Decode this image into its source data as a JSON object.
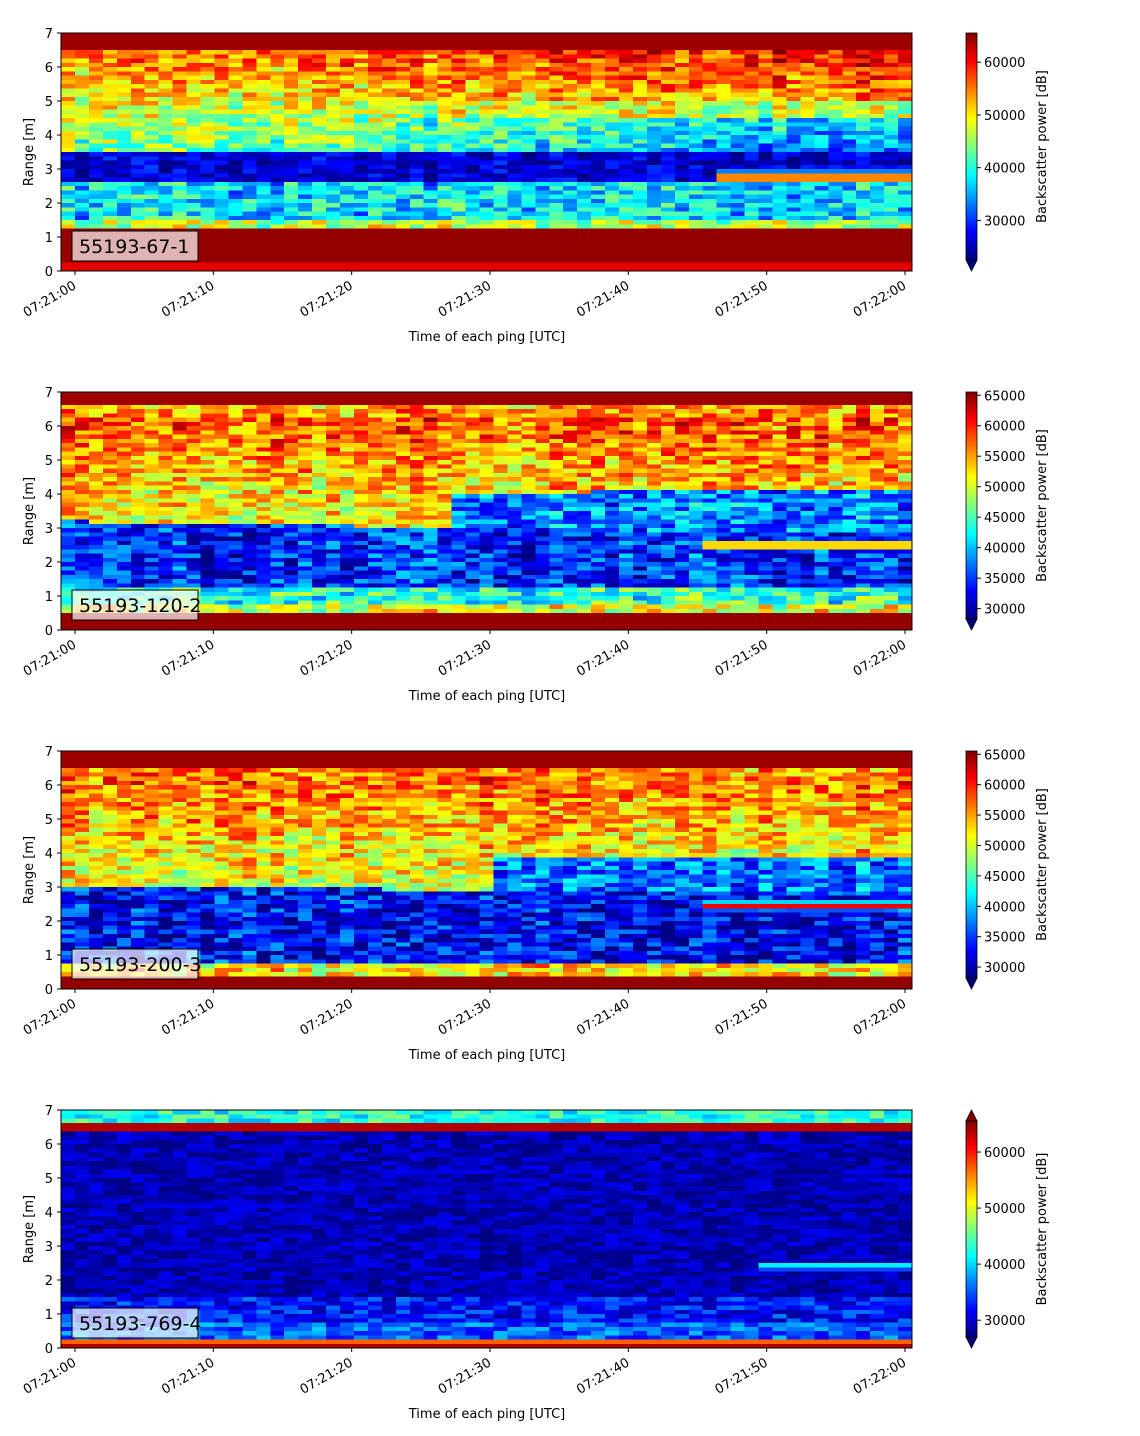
{
  "chart_data": [
    {
      "type": "heatmap",
      "label_box": "55193-67-1",
      "xlabel": "Time of each ping [UTC]",
      "ylabel": "Range [m]",
      "x_ticks": [
        "07:21:00",
        "07:21:10",
        "07:21:20",
        "07:21:30",
        "07:21:40",
        "07:21:50",
        "07:22:00"
      ],
      "xlim": [
        "07:21:00",
        "07:22:00"
      ],
      "y_ticks": [
        0,
        1,
        2,
        3,
        4,
        5,
        6,
        7
      ],
      "ylim": [
        0,
        7
      ],
      "colorbar": {
        "label": "Backscatter power [dB]",
        "ticks": [
          30000,
          40000,
          50000,
          60000
        ],
        "range": [
          22500,
          65535
        ],
        "extend": "min",
        "colormap": "jet"
      }
    },
    {
      "type": "heatmap",
      "label_box": "55193-120-2",
      "xlabel": "Time of each ping [UTC]",
      "ylabel": "Range [m]",
      "x_ticks": [
        "07:21:00",
        "07:21:10",
        "07:21:20",
        "07:21:30",
        "07:21:40",
        "07:21:50",
        "07:22:00"
      ],
      "xlim": [
        "07:21:00",
        "07:22:00"
      ],
      "y_ticks": [
        0,
        1,
        2,
        3,
        4,
        5,
        6,
        7
      ],
      "ylim": [
        0,
        7
      ],
      "colorbar": {
        "label": "Backscatter power [dB]",
        "ticks": [
          30000,
          35000,
          40000,
          45000,
          50000,
          55000,
          60000,
          65000
        ],
        "range": [
          28300,
          65535
        ],
        "extend": "min",
        "colormap": "jet"
      }
    },
    {
      "type": "heatmap",
      "label_box": "55193-200-3",
      "xlabel": "Time of each ping [UTC]",
      "ylabel": "Range [m]",
      "x_ticks": [
        "07:21:00",
        "07:21:10",
        "07:21:20",
        "07:21:30",
        "07:21:40",
        "07:21:50",
        "07:22:00"
      ],
      "xlim": [
        "07:21:00",
        "07:22:00"
      ],
      "y_ticks": [
        0,
        1,
        2,
        3,
        4,
        5,
        6,
        7
      ],
      "ylim": [
        0,
        7
      ],
      "colorbar": {
        "label": "Backscatter power [dB]",
        "ticks": [
          30000,
          35000,
          40000,
          45000,
          50000,
          55000,
          60000,
          65000
        ],
        "range": [
          28200,
          65535
        ],
        "extend": "min",
        "colormap": "jet"
      }
    },
    {
      "type": "heatmap",
      "label_box": "55193-769-4",
      "xlabel": "Time of each ping [UTC]",
      "ylabel": "Range [m]",
      "x_ticks": [
        "07:21:00",
        "07:21:10",
        "07:21:20",
        "07:21:30",
        "07:21:40",
        "07:21:50",
        "07:22:00"
      ],
      "xlim": [
        "07:21:00",
        "07:22:00"
      ],
      "y_ticks": [
        0,
        1,
        2,
        3,
        4,
        5,
        6,
        7
      ],
      "ylim": [
        0,
        7
      ],
      "colorbar": {
        "label": "Backscatter power [dB]",
        "ticks": [
          30000,
          40000,
          50000,
          60000
        ],
        "range": [
          27000,
          65535
        ],
        "extend": "both",
        "colormap": "jet"
      }
    }
  ]
}
